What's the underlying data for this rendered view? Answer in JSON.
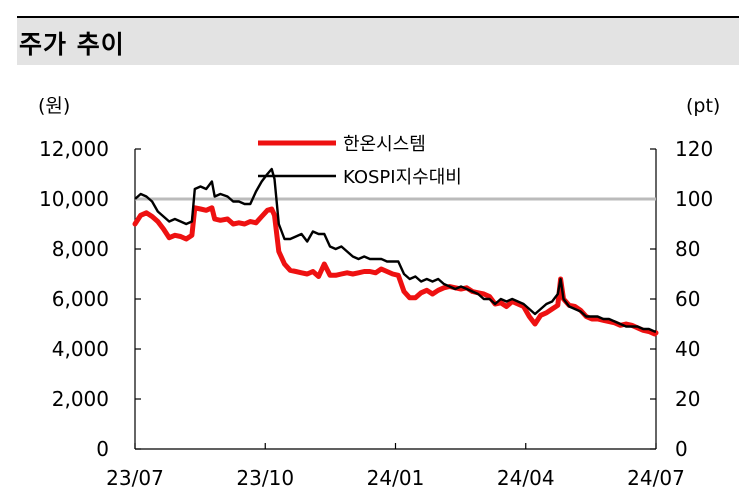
{
  "header": {
    "title": "주가 추이"
  },
  "chart_data": {
    "type": "line",
    "title": "주가 추이",
    "y_left_unit": "(원)",
    "y_right_unit": "(pt)",
    "y_left_range": [
      0,
      12000
    ],
    "y_right_range": [
      0,
      120
    ],
    "y_left_ticks": [
      "0",
      "2,000",
      "4,000",
      "6,000",
      "8,000",
      "10,000",
      "12,000"
    ],
    "y_right_ticks": [
      "0",
      "20",
      "40",
      "60",
      "80",
      "100",
      "120"
    ],
    "x_ticks": [
      "23/07",
      "23/10",
      "24/01",
      "24/04",
      "24/07"
    ],
    "x_range": [
      "2023-07",
      "2024-07"
    ],
    "reference_line": {
      "axis": "right",
      "value": 100
    },
    "legend": {
      "placement": "top-center",
      "entries": [
        "한온시스템",
        "KOSPI지수대비"
      ]
    },
    "colors": {
      "series1": "#ee1111",
      "series2": "#000000",
      "reference": "#bbbbbb"
    },
    "series": [
      {
        "name": "한온시스템",
        "axis": "left",
        "points": [
          [
            "2023-07-01",
            9000
          ],
          [
            "2023-07-05",
            9350
          ],
          [
            "2023-07-09",
            9450
          ],
          [
            "2023-07-13",
            9300
          ],
          [
            "2023-07-17",
            9100
          ],
          [
            "2023-07-21",
            8800
          ],
          [
            "2023-07-25",
            8450
          ],
          [
            "2023-07-29",
            8550
          ],
          [
            "2023-08-02",
            8500
          ],
          [
            "2023-08-06",
            8400
          ],
          [
            "2023-08-10",
            8550
          ],
          [
            "2023-08-12",
            9650
          ],
          [
            "2023-08-16",
            9600
          ],
          [
            "2023-08-20",
            9550
          ],
          [
            "2023-08-24",
            9650
          ],
          [
            "2023-08-26",
            9200
          ],
          [
            "2023-08-30",
            9150
          ],
          [
            "2023-09-04",
            9200
          ],
          [
            "2023-09-08",
            9000
          ],
          [
            "2023-09-12",
            9050
          ],
          [
            "2023-09-16",
            9000
          ],
          [
            "2023-09-20",
            9100
          ],
          [
            "2023-09-24",
            9050
          ],
          [
            "2023-09-28",
            9300
          ],
          [
            "2023-10-02",
            9550
          ],
          [
            "2023-10-05",
            9600
          ],
          [
            "2023-10-07",
            9350
          ],
          [
            "2023-10-10",
            7900
          ],
          [
            "2023-10-14",
            7400
          ],
          [
            "2023-10-18",
            7150
          ],
          [
            "2023-10-22",
            7100
          ],
          [
            "2023-10-26",
            7050
          ],
          [
            "2023-10-30",
            7000
          ],
          [
            "2023-11-03",
            7100
          ],
          [
            "2023-11-07",
            6900
          ],
          [
            "2023-11-11",
            7400
          ],
          [
            "2023-11-15",
            6950
          ],
          [
            "2023-11-19",
            6950
          ],
          [
            "2023-11-23",
            7000
          ],
          [
            "2023-11-27",
            7050
          ],
          [
            "2023-12-01",
            7000
          ],
          [
            "2023-12-05",
            7050
          ],
          [
            "2023-12-09",
            7100
          ],
          [
            "2023-12-13",
            7100
          ],
          [
            "2023-12-17",
            7050
          ],
          [
            "2023-12-21",
            7200
          ],
          [
            "2023-12-25",
            7100
          ],
          [
            "2023-12-29",
            7000
          ],
          [
            "2024-01-02",
            6950
          ],
          [
            "2024-01-06",
            6300
          ],
          [
            "2024-01-10",
            6050
          ],
          [
            "2024-01-14",
            6050
          ],
          [
            "2024-01-18",
            6250
          ],
          [
            "2024-01-22",
            6350
          ],
          [
            "2024-01-26",
            6200
          ],
          [
            "2024-01-30",
            6350
          ],
          [
            "2024-02-03",
            6450
          ],
          [
            "2024-02-07",
            6500
          ],
          [
            "2024-02-11",
            6450
          ],
          [
            "2024-02-15",
            6400
          ],
          [
            "2024-02-19",
            6450
          ],
          [
            "2024-02-23",
            6300
          ],
          [
            "2024-02-27",
            6250
          ],
          [
            "2024-03-02",
            6200
          ],
          [
            "2024-03-06",
            6100
          ],
          [
            "2024-03-10",
            5800
          ],
          [
            "2024-03-14",
            5850
          ],
          [
            "2024-03-18",
            5700
          ],
          [
            "2024-03-22",
            5900
          ],
          [
            "2024-03-26",
            5800
          ],
          [
            "2024-03-30",
            5700
          ],
          [
            "2024-04-03",
            5300
          ],
          [
            "2024-04-07",
            5000
          ],
          [
            "2024-04-11",
            5350
          ],
          [
            "2024-04-15",
            5450
          ],
          [
            "2024-04-19",
            5600
          ],
          [
            "2024-04-23",
            5750
          ],
          [
            "2024-04-25",
            6800
          ],
          [
            "2024-04-27",
            6000
          ],
          [
            "2024-05-01",
            5750
          ],
          [
            "2024-05-05",
            5700
          ],
          [
            "2024-05-09",
            5550
          ],
          [
            "2024-05-13",
            5300
          ],
          [
            "2024-05-17",
            5200
          ],
          [
            "2024-05-21",
            5200
          ],
          [
            "2024-05-25",
            5150
          ],
          [
            "2024-05-29",
            5100
          ],
          [
            "2024-06-02",
            5050
          ],
          [
            "2024-06-06",
            4950
          ],
          [
            "2024-06-10",
            5000
          ],
          [
            "2024-06-14",
            4950
          ],
          [
            "2024-06-18",
            4850
          ],
          [
            "2024-06-22",
            4750
          ],
          [
            "2024-06-26",
            4700
          ],
          [
            "2024-06-30",
            4600
          ],
          [
            "2024-07-01",
            4650
          ]
        ]
      },
      {
        "name": "KOSPI지수대비",
        "axis": "right",
        "points": [
          [
            "2023-07-01",
            100
          ],
          [
            "2023-07-05",
            102
          ],
          [
            "2023-07-09",
            101
          ],
          [
            "2023-07-13",
            99
          ],
          [
            "2023-07-17",
            95
          ],
          [
            "2023-07-21",
            93
          ],
          [
            "2023-07-25",
            91
          ],
          [
            "2023-07-29",
            92
          ],
          [
            "2023-08-02",
            91
          ],
          [
            "2023-08-06",
            90
          ],
          [
            "2023-08-10",
            91
          ],
          [
            "2023-08-12",
            104
          ],
          [
            "2023-08-16",
            105
          ],
          [
            "2023-08-20",
            104
          ],
          [
            "2023-08-24",
            107
          ],
          [
            "2023-08-26",
            101
          ],
          [
            "2023-08-30",
            102
          ],
          [
            "2023-09-04",
            101
          ],
          [
            "2023-09-08",
            99
          ],
          [
            "2023-09-12",
            99
          ],
          [
            "2023-09-16",
            98
          ],
          [
            "2023-09-20",
            98
          ],
          [
            "2023-09-24",
            103
          ],
          [
            "2023-09-28",
            107
          ],
          [
            "2023-10-02",
            110
          ],
          [
            "2023-10-05",
            112
          ],
          [
            "2023-10-07",
            108
          ],
          [
            "2023-10-10",
            90
          ],
          [
            "2023-10-14",
            84
          ],
          [
            "2023-10-18",
            84
          ],
          [
            "2023-10-22",
            85
          ],
          [
            "2023-10-26",
            86
          ],
          [
            "2023-10-30",
            83
          ],
          [
            "2023-11-03",
            87
          ],
          [
            "2023-11-07",
            86
          ],
          [
            "2023-11-11",
            86
          ],
          [
            "2023-11-15",
            81
          ],
          [
            "2023-11-19",
            80
          ],
          [
            "2023-11-23",
            81
          ],
          [
            "2023-11-27",
            79
          ],
          [
            "2023-12-01",
            77
          ],
          [
            "2023-12-05",
            76
          ],
          [
            "2023-12-09",
            77
          ],
          [
            "2023-12-13",
            76
          ],
          [
            "2023-12-17",
            76
          ],
          [
            "2023-12-21",
            76
          ],
          [
            "2023-12-25",
            75
          ],
          [
            "2023-12-29",
            75
          ],
          [
            "2024-01-02",
            75
          ],
          [
            "2024-01-06",
            70
          ],
          [
            "2024-01-10",
            68
          ],
          [
            "2024-01-14",
            69
          ],
          [
            "2024-01-18",
            67
          ],
          [
            "2024-01-22",
            68
          ],
          [
            "2024-01-26",
            67
          ],
          [
            "2024-01-30",
            68
          ],
          [
            "2024-02-03",
            66
          ],
          [
            "2024-02-07",
            65
          ],
          [
            "2024-02-11",
            64
          ],
          [
            "2024-02-15",
            65
          ],
          [
            "2024-02-19",
            64
          ],
          [
            "2024-02-23",
            63
          ],
          [
            "2024-02-27",
            62
          ],
          [
            "2024-03-02",
            60
          ],
          [
            "2024-03-06",
            60
          ],
          [
            "2024-03-10",
            58
          ],
          [
            "2024-03-14",
            60
          ],
          [
            "2024-03-18",
            59
          ],
          [
            "2024-03-22",
            60
          ],
          [
            "2024-03-26",
            59
          ],
          [
            "2024-03-30",
            58
          ],
          [
            "2024-04-03",
            56
          ],
          [
            "2024-04-07",
            54
          ],
          [
            "2024-04-11",
            56
          ],
          [
            "2024-04-15",
            58
          ],
          [
            "2024-04-19",
            59
          ],
          [
            "2024-04-23",
            62
          ],
          [
            "2024-04-25",
            68
          ],
          [
            "2024-04-27",
            60
          ],
          [
            "2024-05-01",
            57
          ],
          [
            "2024-05-05",
            56
          ],
          [
            "2024-05-09",
            55
          ],
          [
            "2024-05-13",
            53
          ],
          [
            "2024-05-17",
            53
          ],
          [
            "2024-05-21",
            53
          ],
          [
            "2024-05-25",
            52
          ],
          [
            "2024-05-29",
            52
          ],
          [
            "2024-06-02",
            51
          ],
          [
            "2024-06-06",
            50
          ],
          [
            "2024-06-10",
            49
          ],
          [
            "2024-06-14",
            49
          ],
          [
            "2024-06-18",
            49
          ],
          [
            "2024-06-22",
            48
          ],
          [
            "2024-06-26",
            48
          ],
          [
            "2024-06-30",
            47
          ],
          [
            "2024-07-01",
            47
          ]
        ]
      }
    ]
  }
}
